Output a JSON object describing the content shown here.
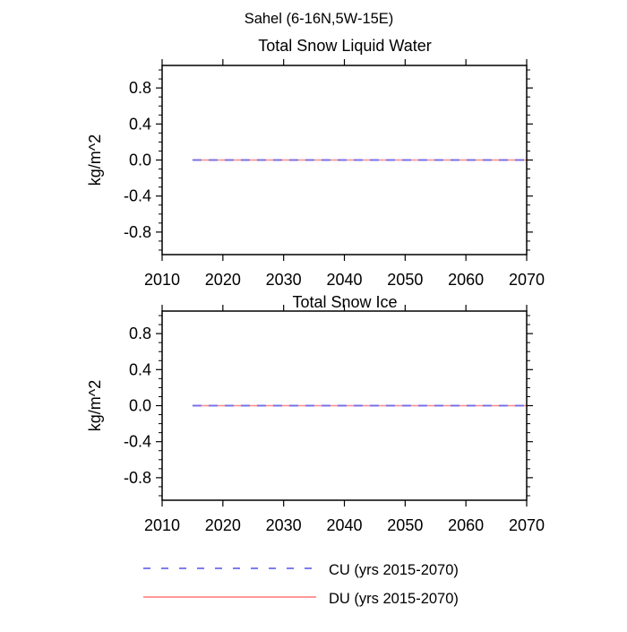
{
  "figure": {
    "title": "Sahel (6-16N,5W-15E)",
    "background": "#ffffff",
    "text_color": "#000000"
  },
  "chart_data": [
    {
      "type": "line",
      "title": "Total Snow Liquid Water",
      "xlabel": "",
      "ylabel": "kg/m^2",
      "xlim": [
        2010,
        2070
      ],
      "ylim": [
        -1.05,
        1.05
      ],
      "xticks": [
        2010,
        2020,
        2030,
        2040,
        2050,
        2060,
        2070
      ],
      "yticks": [
        0.8,
        0.4,
        0.0,
        -0.4,
        -0.8
      ],
      "y_minor_step": 0.1,
      "grid": false,
      "series": [
        {
          "name": "CU (yrs 2015-2070)",
          "x": [
            2015,
            2070
          ],
          "values": [
            0.0,
            0.0
          ],
          "style": "dashed",
          "color": "#6b6bf0"
        },
        {
          "name": "DU (yrs 2015-2070)",
          "x": [
            2015,
            2070
          ],
          "values": [
            0.0,
            0.0
          ],
          "style": "solid",
          "color": "#ff8a8a"
        }
      ]
    },
    {
      "type": "line",
      "title": "Total Snow Ice",
      "xlabel": "",
      "ylabel": "kg/m^2",
      "xlim": [
        2010,
        2070
      ],
      "ylim": [
        -1.05,
        1.05
      ],
      "xticks": [
        2010,
        2020,
        2030,
        2040,
        2050,
        2060,
        2070
      ],
      "yticks": [
        0.8,
        0.4,
        0.0,
        -0.4,
        -0.8
      ],
      "y_minor_step": 0.1,
      "grid": false,
      "series": [
        {
          "name": "CU (yrs 2015-2070)",
          "x": [
            2015,
            2070
          ],
          "values": [
            0.0,
            0.0
          ],
          "style": "dashed",
          "color": "#6b6bf0"
        },
        {
          "name": "DU (yrs 2015-2070)",
          "x": [
            2015,
            2070
          ],
          "values": [
            0.0,
            0.0
          ],
          "style": "solid",
          "color": "#ff8a8a"
        }
      ]
    }
  ],
  "legend": {
    "position": "bottom",
    "entries": [
      {
        "label": "CU (yrs 2015-2070)",
        "color": "#6b6bf0",
        "style": "dashed"
      },
      {
        "label": "DU (yrs 2015-2070)",
        "color": "#ff8a8a",
        "style": "solid"
      }
    ]
  }
}
